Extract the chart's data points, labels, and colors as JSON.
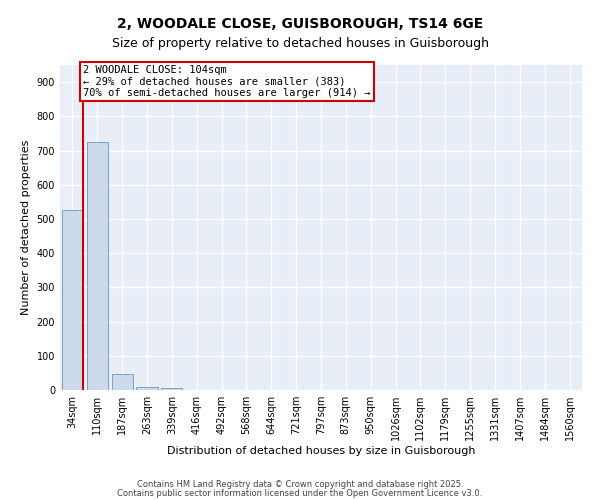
{
  "title1": "2, WOODALE CLOSE, GUISBOROUGH, TS14 6GE",
  "title2": "Size of property relative to detached houses in Guisborough",
  "xlabel": "Distribution of detached houses by size in Guisborough",
  "ylabel": "Number of detached properties",
  "bar_labels": [
    "34sqm",
    "110sqm",
    "187sqm",
    "263sqm",
    "339sqm",
    "416sqm",
    "492sqm",
    "568sqm",
    "644sqm",
    "721sqm",
    "797sqm",
    "873sqm",
    "950sqm",
    "1026sqm",
    "1102sqm",
    "1179sqm",
    "1255sqm",
    "1331sqm",
    "1407sqm",
    "1484sqm",
    "1560sqm"
  ],
  "bar_values": [
    527,
    725,
    47,
    8,
    6,
    0,
    0,
    0,
    0,
    0,
    0,
    0,
    0,
    0,
    0,
    0,
    0,
    0,
    0,
    0,
    0
  ],
  "bar_color": "#ccdaec",
  "bar_edge_color": "#7aa0c4",
  "vline_color": "#cc0000",
  "ylim_max": 950,
  "yticks": [
    0,
    100,
    200,
    300,
    400,
    500,
    600,
    700,
    800,
    900
  ],
  "annotation_text": "2 WOODALE CLOSE: 104sqm\n← 29% of detached houses are smaller (383)\n70% of semi-detached houses are larger (914) →",
  "annotation_box_color": "#cc0000",
  "footer1": "Contains HM Land Registry data © Crown copyright and database right 2025.",
  "footer2": "Contains public sector information licensed under the Open Government Licence v3.0.",
  "bg_color": "#e8eef8",
  "grid_color": "#ffffff",
  "title1_fontsize": 10,
  "title2_fontsize": 9,
  "xlabel_fontsize": 8,
  "ylabel_fontsize": 8,
  "tick_fontsize": 7,
  "annotation_fontsize": 7.5,
  "footer_fontsize": 6
}
